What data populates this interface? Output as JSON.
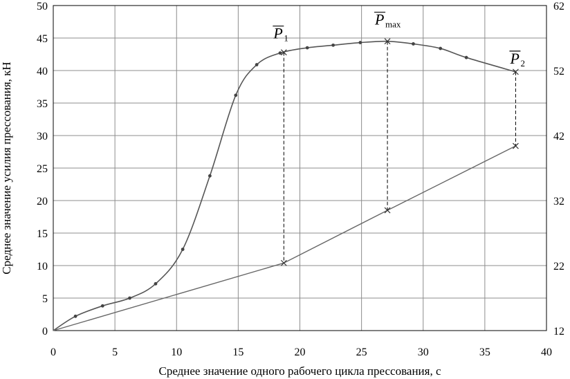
{
  "chart_data": {
    "type": "line",
    "title": "",
    "xlabel": "Среднее значение одного рабочего цикла прессования, с",
    "ylabel": "Среднее значение усилия прессования, кН",
    "y2label": "",
    "xlim": [
      0,
      40
    ],
    "ylim": [
      0,
      50
    ],
    "y2lim": [
      12,
      62
    ],
    "x_ticks": [
      "0",
      "5",
      "10",
      "15",
      "20",
      "25",
      "30",
      "35",
      "40"
    ],
    "y_ticks": [
      "0",
      "5",
      "10",
      "15",
      "20",
      "25",
      "30",
      "35",
      "40",
      "45",
      "50"
    ],
    "y2_ticks": [
      "12",
      "22",
      "32",
      "42",
      "52",
      "62"
    ],
    "grid": true,
    "series": [
      {
        "axis": "left",
        "color": "#555555",
        "marker": "dot",
        "x": [
          0,
          1.8,
          4.0,
          6.2,
          8.3,
          10.5,
          12.7,
          14.8,
          16.5,
          18.4,
          20.6,
          22.7,
          24.9,
          27.1,
          29.2,
          31.4,
          33.5,
          37.5
        ],
        "y": [
          0,
          2.2,
          3.8,
          5.0,
          7.2,
          12.5,
          23.8,
          36.2,
          40.9,
          42.7,
          43.5,
          43.9,
          44.3,
          44.5,
          44.1,
          43.4,
          42.0,
          39.8
        ]
      },
      {
        "axis": "right",
        "color": "#666666",
        "marker": "none",
        "x": [
          0,
          18.7,
          27.1,
          37.5
        ],
        "y": [
          12,
          22.4,
          30.5,
          40.4
        ]
      }
    ],
    "annotations": [
      {
        "name": "p1",
        "letter": "P",
        "sub": "1",
        "x": 18.7,
        "y_top": 42.8,
        "y2_bottom": 22.4
      },
      {
        "name": "pmax",
        "letter": "P",
        "sub": "max",
        "x": 27.1,
        "y_top": 44.5,
        "y2_bottom": 30.5
      },
      {
        "name": "p2",
        "letter": "P",
        "sub": "2",
        "x": 37.5,
        "y_top": 39.8,
        "y2_bottom": 40.4
      }
    ]
  }
}
